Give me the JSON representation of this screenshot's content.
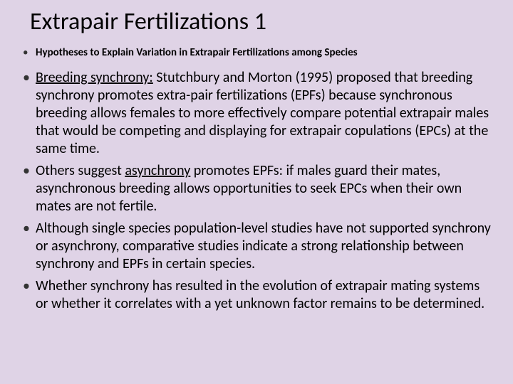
{
  "slide": {
    "title": "Extrapair Fertilizations 1",
    "subheading": "Hypotheses to Explain Variation in Extrapair Fertilizations among Species",
    "bullets": [
      {
        "term": "Breeding synchrony:",
        "text": " Stutchbury and Morton (1995) proposed that breeding synchrony promotes extra-pair fertilizations (EPFs) because synchronous breeding allows females to more effectively compare potential extrapair males that would be competing and displaying for extrapair copulations (EPCs) at the same time."
      },
      {
        "pre": "Others suggest ",
        "term": "asynchrony",
        "text": " promotes EPFs: if males guard their mates, asynchronous breeding allows opportunities to seek EPCs when their own mates are not fertile."
      },
      {
        "text": "Although single species population-level studies have not supported synchrony or asynchrony, comparative studies indicate a strong relationship between synchrony and EPFs in certain species."
      },
      {
        "text": "Whether synchrony has resulted in the evolution of extrapair mating systems or whether it correlates with a yet unknown factor remains to be determined."
      }
    ]
  },
  "style": {
    "background_color": "#dfd3e6",
    "title_fontsize": 34,
    "subheading_fontsize": 15,
    "body_fontsize": 20,
    "text_color": "#000000",
    "font_family": "Calibri"
  }
}
